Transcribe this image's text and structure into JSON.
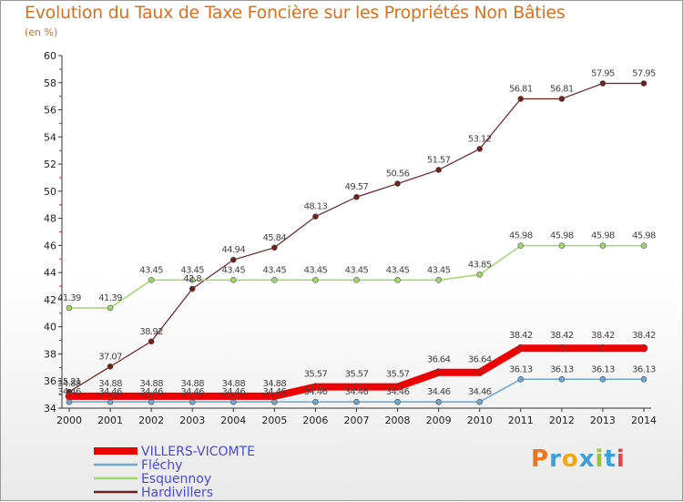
{
  "header": {
    "title": "Evolution du Taux de Taxe Foncière sur les Propriétés Non Bâties",
    "unit": "(en %)"
  },
  "logo": {
    "letters": [
      "P",
      "r",
      "o",
      "x",
      "i",
      "t",
      "i"
    ],
    "colors": [
      "#e8771f",
      "#3aa0d8",
      "#f0a818",
      "#3aa0d8",
      "#9bc234",
      "#3aa0d8",
      "#e04848"
    ]
  },
  "chart_data": {
    "type": "line",
    "title": "Evolution du Taux de Taxe Foncière sur les Propriétés Non Bâties",
    "ylabel": "(en %)",
    "xlabel": "",
    "x": [
      "2000",
      "2001",
      "2002",
      "2003",
      "2004",
      "2005",
      "2006",
      "2007",
      "2008",
      "2009",
      "2010",
      "2011",
      "2012",
      "2013",
      "2014"
    ],
    "ylim": [
      34,
      60
    ],
    "yticks": [
      34,
      36,
      38,
      40,
      42,
      44,
      46,
      48,
      50,
      52,
      54,
      56,
      58,
      60
    ],
    "grid": false,
    "legend_position": "bottom-left",
    "series": [
      {
        "name": "Hardivillers",
        "color": "#6e1f20",
        "width": 1.2,
        "values": [
          35.21,
          37.07,
          38.92,
          42.8,
          44.94,
          45.84,
          48.13,
          49.57,
          50.56,
          51.57,
          53.12,
          56.81,
          56.81,
          57.95,
          57.95
        ],
        "labels": [
          "35.21",
          "37.07",
          "38.92",
          "42.8",
          "44.94",
          "45.84",
          "48.13",
          "49.57",
          "50.56",
          "51.57",
          "53.12",
          "56.81",
          "56.81",
          "57.95",
          "57.95"
        ]
      },
      {
        "name": "Esquennoy",
        "color": "#9fd76d",
        "width": 1.5,
        "values": [
          41.39,
          41.39,
          43.45,
          43.45,
          43.45,
          43.45,
          43.45,
          43.45,
          43.45,
          43.45,
          43.85,
          45.98,
          45.98,
          45.98,
          45.98
        ],
        "labels": [
          "41.39",
          "41.39",
          "43.45",
          "43.45",
          "43.45",
          "43.45",
          "43.45",
          "43.45",
          "43.45",
          "43.45",
          "43.85",
          "45.98",
          "45.98",
          "45.98",
          "45.98"
        ]
      },
      {
        "name": "Fléchy",
        "color": "#6fa6cf",
        "width": 1.5,
        "values": [
          34.46,
          34.46,
          34.46,
          34.46,
          34.46,
          34.46,
          34.46,
          34.46,
          34.46,
          34.46,
          34.46,
          36.13,
          36.13,
          36.13,
          36.13
        ],
        "labels": [
          "34.46",
          "34.46",
          "34.46",
          "34.46",
          "34.46",
          "34.46",
          "34.46",
          "34.46",
          "34.46",
          "34.46",
          "34.46",
          "36.13",
          "36.13",
          "36.13",
          "36.13"
        ]
      },
      {
        "name": "VILLERS-VICOMTE",
        "color": "#ee0000",
        "width": 8,
        "values": [
          34.88,
          34.88,
          34.88,
          34.88,
          34.88,
          34.88,
          35.57,
          35.57,
          35.57,
          36.64,
          36.64,
          38.42,
          38.42,
          38.42,
          38.42
        ],
        "labels": [
          "34.88",
          "34.88",
          "34.88",
          "34.88",
          "34.88",
          "34.88",
          "35.57",
          "35.57",
          "35.57",
          "36.64",
          "36.64",
          "38.42",
          "38.42",
          "38.42",
          "38.42"
        ]
      }
    ],
    "legend": [
      {
        "name": "VILLERS-VICOMTE",
        "color": "#ee0000",
        "text_color": "#4a4ad6"
      },
      {
        "name": "Fléchy",
        "color": "#6fa6cf",
        "text_color": "#4a4ad6"
      },
      {
        "name": "Esquennoy",
        "color": "#9fd76d",
        "text_color": "#4a4ad6"
      },
      {
        "name": "Hardivillers",
        "color": "#6e1f20",
        "text_color": "#4a4ad6"
      }
    ]
  }
}
